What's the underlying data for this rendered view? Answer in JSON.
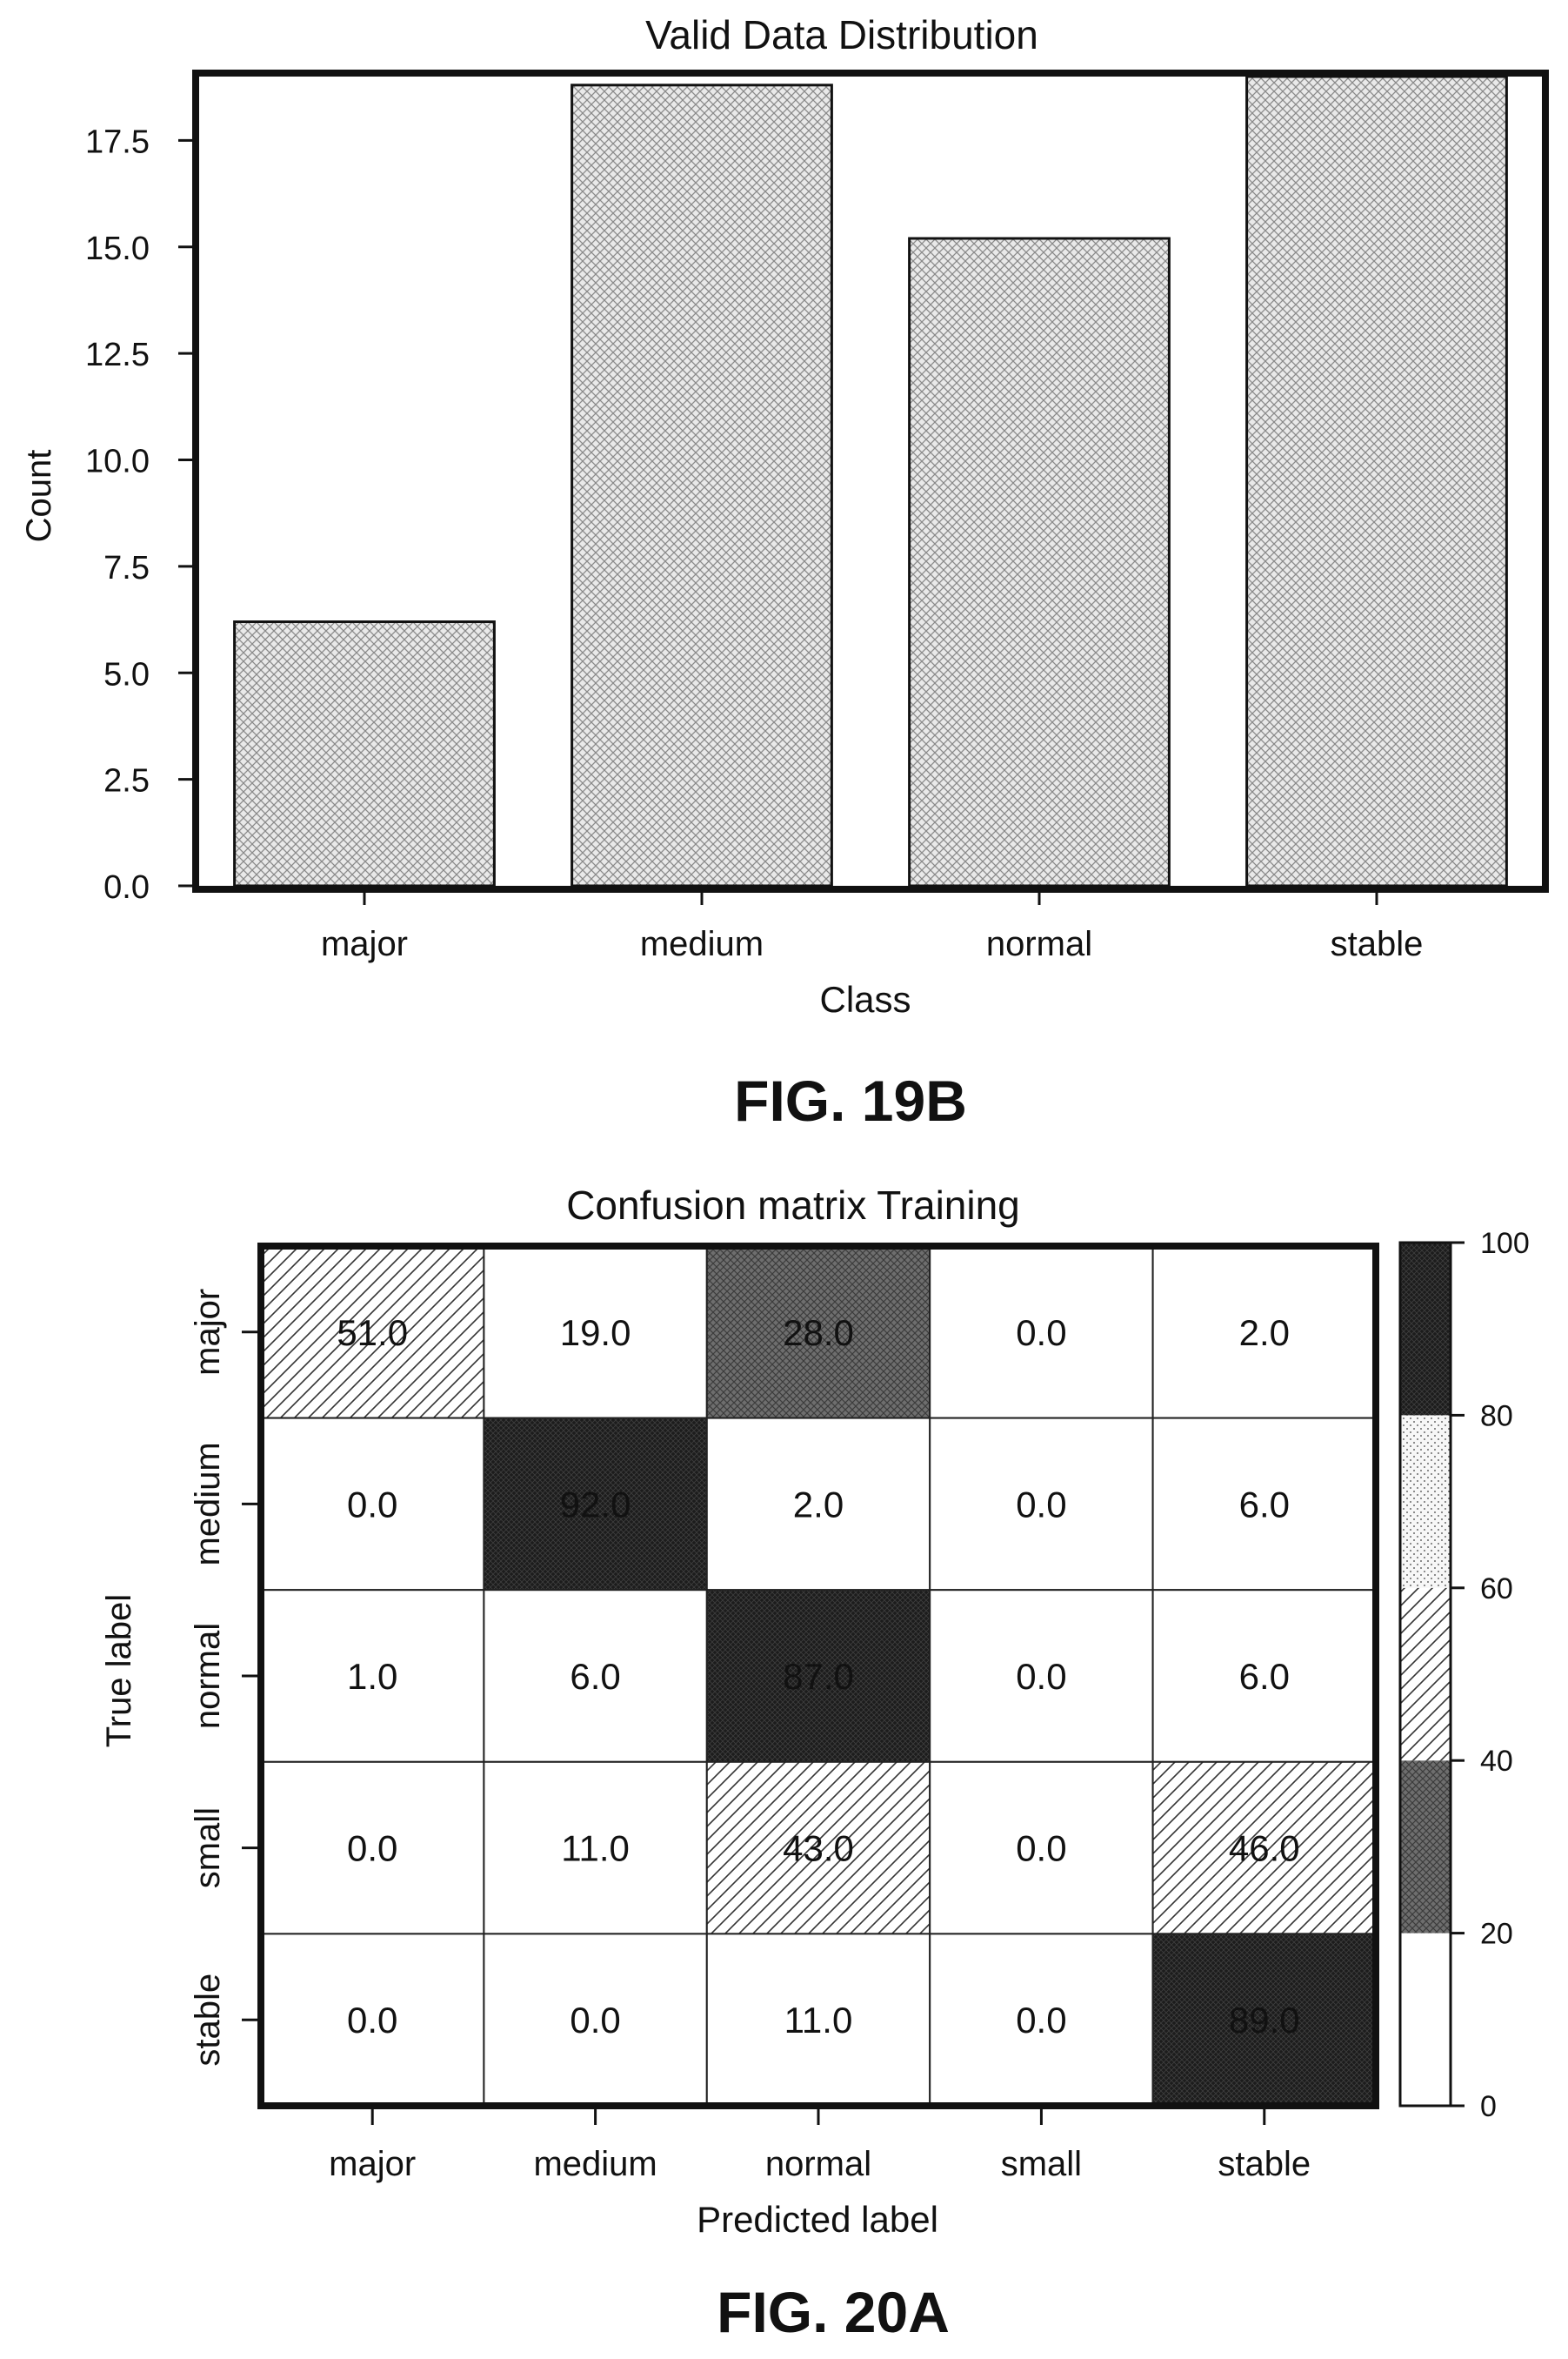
{
  "chart_data": [
    {
      "type": "bar",
      "title": "Valid Data Distribution",
      "xlabel": "Class",
      "ylabel": "Count",
      "categories": [
        "major",
        "medium",
        "normal",
        "stable"
      ],
      "values": [
        6.2,
        18.8,
        15.2,
        19.0
      ],
      "ylim": [
        0,
        19.0
      ],
      "yticks": [
        "0.0",
        "2.5",
        "5.0",
        "7.5",
        "10.0",
        "12.5",
        "15.0",
        "17.5"
      ],
      "grid": false,
      "figure_caption": "FIG. 19B"
    },
    {
      "type": "heatmap",
      "title": "Confusion matrix Training",
      "xlabel": "Predicted label",
      "ylabel": "True label",
      "x_categories": [
        "major",
        "medium",
        "normal",
        "small",
        "stable"
      ],
      "y_categories": [
        "major",
        "medium",
        "normal",
        "small",
        "stable"
      ],
      "cells": [
        [
          "51.0",
          "19.0",
          "28.0",
          "0.0",
          "2.0"
        ],
        [
          "0.0",
          "92.0",
          "2.0",
          "0.0",
          "6.0"
        ],
        [
          "1.0",
          "6.0",
          "87.0",
          "0.0",
          "6.0"
        ],
        [
          "0.0",
          "11.0",
          "43.0",
          "0.0",
          "46.0"
        ],
        [
          "0.0",
          "0.0",
          "11.0",
          "0.0",
          "89.0"
        ]
      ],
      "colorbar": {
        "range": [
          0,
          100
        ],
        "ticks": [
          "0",
          "20",
          "40",
          "60",
          "80",
          "100"
        ]
      },
      "figure_caption": "FIG. 20A"
    }
  ]
}
